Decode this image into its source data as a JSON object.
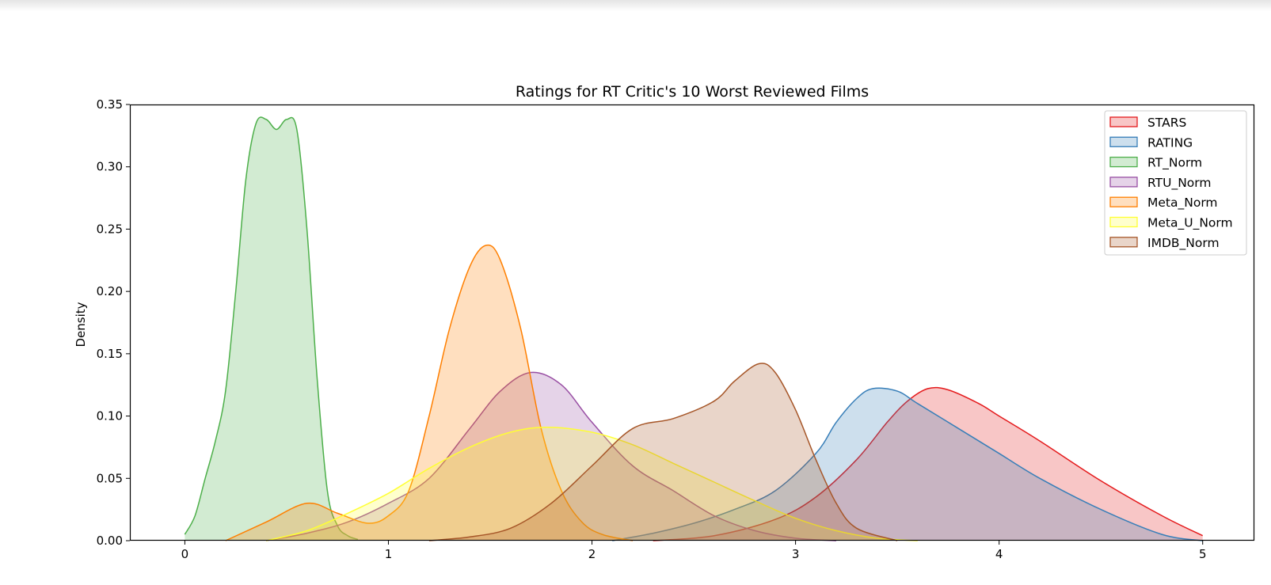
{
  "chart_data": {
    "type": "area",
    "title": "Ratings for RT Critic's 10 Worst Reviewed Films",
    "xlabel": "",
    "ylabel": "Density",
    "xlim": [
      -0.27,
      5.25
    ],
    "ylim": [
      0,
      0.35
    ],
    "x_ticks": [
      "0",
      "1",
      "2",
      "3",
      "4",
      "5"
    ],
    "y_ticks": [
      "0.00",
      "0.05",
      "0.10",
      "0.15",
      "0.20",
      "0.25",
      "0.30",
      "0.35"
    ],
    "grid": false,
    "legend_position": "top-right",
    "series": [
      {
        "name": "STARS",
        "color": "#e41a1c",
        "x": [
          2.3,
          2.6,
          2.9,
          3.1,
          3.3,
          3.45,
          3.55,
          3.65,
          3.75,
          3.9,
          4.0,
          4.2,
          4.5,
          4.8,
          5.0
        ],
        "y": [
          0.0,
          0.004,
          0.017,
          0.035,
          0.065,
          0.095,
          0.112,
          0.122,
          0.121,
          0.11,
          0.1,
          0.08,
          0.048,
          0.02,
          0.004
        ]
      },
      {
        "name": "RATING",
        "color": "#377eb8",
        "x": [
          2.1,
          2.3,
          2.5,
          2.7,
          2.9,
          3.1,
          3.2,
          3.3,
          3.38,
          3.5,
          3.6,
          3.8,
          4.0,
          4.2,
          4.5,
          4.8,
          5.0
        ],
        "y": [
          0.0,
          0.006,
          0.014,
          0.025,
          0.04,
          0.07,
          0.095,
          0.114,
          0.122,
          0.12,
          0.11,
          0.09,
          0.07,
          0.05,
          0.025,
          0.005,
          0.0
        ]
      },
      {
        "name": "RT_Norm",
        "color": "#4daf4a",
        "x": [
          0.0,
          0.05,
          0.1,
          0.15,
          0.2,
          0.25,
          0.3,
          0.35,
          0.4,
          0.45,
          0.5,
          0.55,
          0.6,
          0.65,
          0.7,
          0.75,
          0.8,
          0.85
        ],
        "y": [
          0.005,
          0.02,
          0.05,
          0.08,
          0.12,
          0.2,
          0.29,
          0.335,
          0.338,
          0.33,
          0.338,
          0.33,
          0.25,
          0.13,
          0.04,
          0.012,
          0.004,
          0.001
        ]
      },
      {
        "name": "RTU_Norm",
        "color": "#984ea3",
        "x": [
          0.4,
          0.6,
          0.8,
          1.0,
          1.2,
          1.4,
          1.55,
          1.7,
          1.85,
          2.0,
          2.2,
          2.4,
          2.6,
          2.8,
          3.0,
          3.2
        ],
        "y": [
          0.0,
          0.006,
          0.015,
          0.03,
          0.05,
          0.09,
          0.12,
          0.135,
          0.125,
          0.095,
          0.06,
          0.04,
          0.02,
          0.008,
          0.002,
          0.0
        ]
      },
      {
        "name": "Meta_Norm",
        "color": "#ff7f00",
        "x": [
          0.2,
          0.4,
          0.6,
          0.75,
          0.9,
          1.0,
          1.1,
          1.2,
          1.3,
          1.4,
          1.48,
          1.55,
          1.65,
          1.75,
          1.85,
          1.95,
          2.05,
          2.2
        ],
        "y": [
          0.0,
          0.015,
          0.03,
          0.022,
          0.014,
          0.02,
          0.04,
          0.1,
          0.17,
          0.22,
          0.237,
          0.225,
          0.17,
          0.09,
          0.04,
          0.015,
          0.005,
          0.0
        ]
      },
      {
        "name": "Meta_U_Norm",
        "color": "#ffff33",
        "x": [
          0.4,
          0.6,
          0.8,
          1.0,
          1.2,
          1.4,
          1.6,
          1.78,
          2.0,
          2.2,
          2.4,
          2.6,
          2.8,
          3.0,
          3.2,
          3.4,
          3.6
        ],
        "y": [
          0.0,
          0.008,
          0.022,
          0.038,
          0.058,
          0.075,
          0.087,
          0.091,
          0.087,
          0.077,
          0.062,
          0.047,
          0.032,
          0.018,
          0.008,
          0.002,
          0.0
        ]
      },
      {
        "name": "IMDB_Norm",
        "color": "#a65628",
        "x": [
          1.2,
          1.4,
          1.6,
          1.8,
          2.0,
          2.2,
          2.4,
          2.6,
          2.7,
          2.82,
          2.9,
          3.0,
          3.1,
          3.2,
          3.3,
          3.5
        ],
        "y": [
          0.0,
          0.003,
          0.01,
          0.03,
          0.06,
          0.09,
          0.098,
          0.112,
          0.128,
          0.142,
          0.135,
          0.105,
          0.065,
          0.03,
          0.01,
          0.0
        ]
      }
    ]
  }
}
